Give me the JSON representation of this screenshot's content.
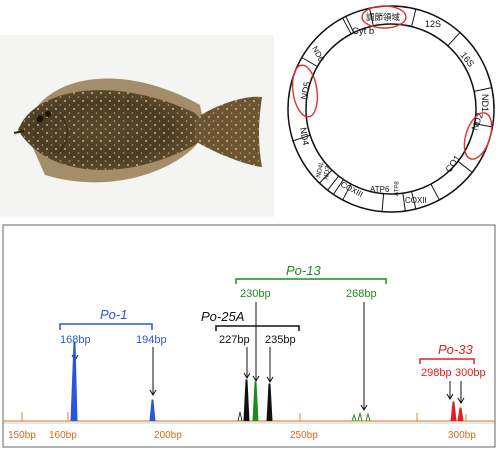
{
  "genome": {
    "segments": [
      "Cyt b",
      "調節領域",
      "12S",
      "16S",
      "ND1",
      "ND2",
      "CO1",
      "COXII",
      "ATP8",
      "ATP6",
      "COXIII",
      "ND3",
      "ND4L",
      "ND4",
      "ND5",
      "ND6"
    ],
    "highlighted": [
      "調節領域",
      "ND5",
      "ND2"
    ],
    "highlight_color": "#e03030"
  },
  "electropherogram": {
    "x_axis_ticks": [
      "150bp",
      "160bp",
      "200bp",
      "250bp",
      "300bp"
    ],
    "groups": [
      {
        "name": "Po-1",
        "color": "#2a55e0",
        "peaks": [
          "168bp",
          "194bp"
        ]
      },
      {
        "name": "Po-13",
        "color": "#1f8a1f",
        "peaks": [
          "230bp",
          "268bp"
        ]
      },
      {
        "name": "Po-25A",
        "color": "#111111",
        "peaks": [
          "227bp",
          "235bp"
        ]
      },
      {
        "name": "Po-33",
        "color": "#e02020",
        "peaks": [
          "298bp",
          "300bp"
        ]
      }
    ]
  }
}
